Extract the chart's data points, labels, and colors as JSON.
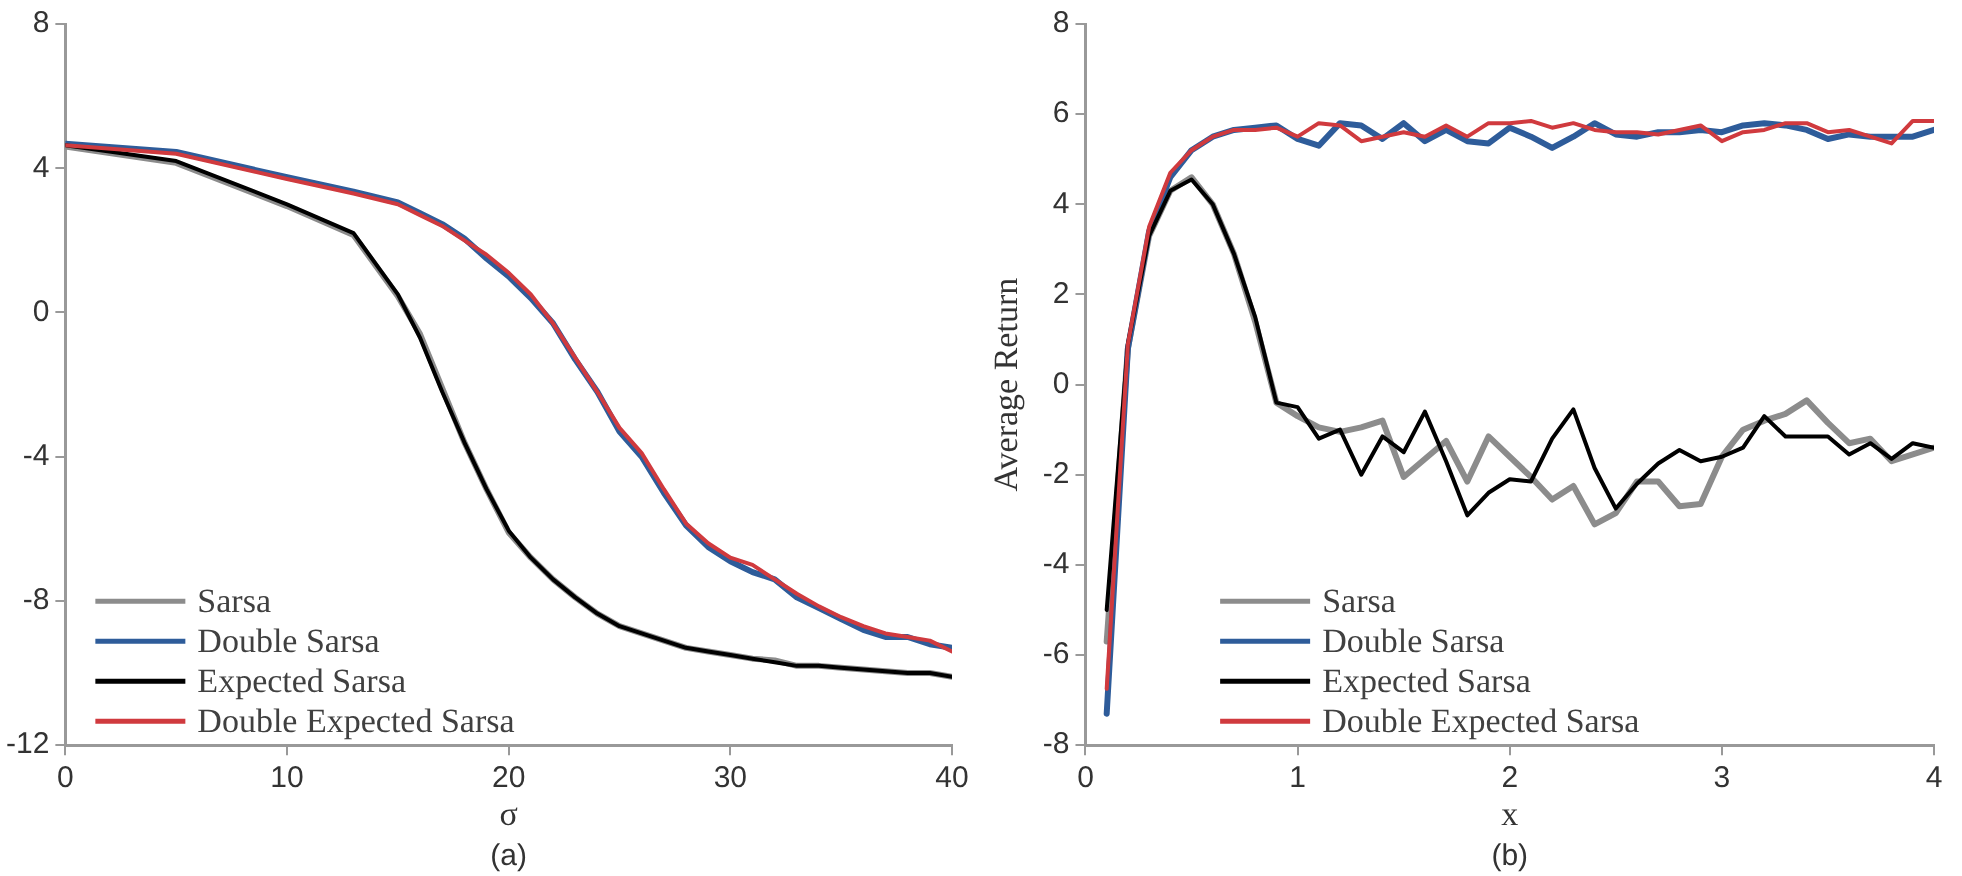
{
  "chart_data": [
    {
      "type": "line",
      "xlabel": "σ",
      "annotations": [
        "(a)"
      ],
      "xlim": [
        0,
        40
      ],
      "xticks": [
        0,
        10,
        20,
        30,
        40
      ],
      "ylim": [
        -12,
        8
      ],
      "yticks": [
        8,
        4,
        0,
        -4,
        -8,
        -12
      ],
      "grid": false,
      "legend": "bottom left",
      "marker": "none",
      "line_style": "solid",
      "x": [
        0,
        5,
        10,
        13,
        15,
        16,
        17,
        18,
        19,
        20,
        21,
        22,
        23,
        24,
        25,
        26,
        27,
        28,
        29,
        30,
        31,
        32,
        33,
        34,
        35,
        36,
        37,
        38,
        39,
        40
      ],
      "series": [
        {
          "name": "Sarsa",
          "color": "#8c8c8c",
          "values": [
            4.6,
            4.15,
            2.95,
            2.15,
            0.45,
            -0.6,
            -2.1,
            -3.6,
            -4.9,
            -6.1,
            -6.8,
            -7.4,
            -7.9,
            -8.35,
            -8.7,
            -8.9,
            -9.1,
            -9.3,
            -9.4,
            -9.5,
            -9.6,
            -9.65,
            -9.8,
            -9.8,
            -9.85,
            -9.9,
            -9.95,
            -10.0,
            -10.0,
            -10.1
          ]
        },
        {
          "name": "Double Sarsa",
          "color": "#2e5c9a",
          "values": [
            4.68,
            4.45,
            3.75,
            3.35,
            3.05,
            2.75,
            2.45,
            2.05,
            1.5,
            1.0,
            0.4,
            -0.3,
            -1.3,
            -2.2,
            -3.3,
            -4.0,
            -5.0,
            -5.9,
            -6.5,
            -6.9,
            -7.2,
            -7.4,
            -7.9,
            -8.2,
            -8.5,
            -8.8,
            -9.0,
            -9.0,
            -9.2,
            -9.3
          ]
        },
        {
          "name": "Expected Sarsa",
          "color": "#000000",
          "values": [
            4.64,
            4.2,
            3.0,
            2.2,
            0.5,
            -0.7,
            -2.2,
            -3.6,
            -4.9,
            -6.05,
            -6.8,
            -7.4,
            -7.9,
            -8.35,
            -8.7,
            -8.9,
            -9.1,
            -9.3,
            -9.4,
            -9.5,
            -9.6,
            -9.7,
            -9.8,
            -9.8,
            -9.85,
            -9.9,
            -9.95,
            -10.0,
            -10.0,
            -10.1
          ]
        },
        {
          "name": "Double Expected Sarsa",
          "color": "#d03a3e",
          "values": [
            4.64,
            4.4,
            3.7,
            3.3,
            3.0,
            2.7,
            2.4,
            2.0,
            1.6,
            1.1,
            0.5,
            -0.3,
            -1.25,
            -2.2,
            -3.2,
            -3.9,
            -4.9,
            -5.85,
            -6.4,
            -6.8,
            -7.0,
            -7.4,
            -7.8,
            -8.15,
            -8.45,
            -8.7,
            -8.9,
            -9.0,
            -9.1,
            -9.4
          ]
        }
      ]
    },
    {
      "type": "line",
      "xlabel": "x",
      "ylabel": "Average Return",
      "annotations": [
        "(b)"
      ],
      "xlim": [
        0,
        4
      ],
      "xticks": [
        0,
        1,
        2,
        3,
        4
      ],
      "ylim": [
        -8,
        8
      ],
      "yticks": [
        8,
        6,
        4,
        2,
        0,
        -2,
        -4,
        -6,
        -8
      ],
      "grid": false,
      "legend": "bottom",
      "marker": "none",
      "line_style": "solid",
      "x": [
        0.1,
        0.2,
        0.3,
        0.4,
        0.5,
        0.6,
        0.7,
        0.8,
        0.9,
        1.0,
        1.1,
        1.2,
        1.3,
        1.4,
        1.5,
        1.6,
        1.7,
        1.8,
        1.9,
        2.0,
        2.1,
        2.2,
        2.3,
        2.4,
        2.5,
        2.6,
        2.7,
        2.8,
        2.9,
        3.0,
        3.1,
        3.2,
        3.3,
        3.4,
        3.5,
        3.6,
        3.7,
        3.8,
        3.9,
        4.0
      ],
      "series": [
        {
          "name": "Sarsa",
          "color": "#8c8c8c",
          "values": [
            -5.7,
            0.8,
            3.3,
            4.3,
            4.6,
            4.0,
            2.9,
            1.4,
            -0.4,
            -0.7,
            -0.95,
            -1.05,
            -0.95,
            -0.8,
            -2.05,
            -1.65,
            -1.25,
            -2.15,
            -1.15,
            -1.6,
            -2.05,
            -2.55,
            -2.25,
            -3.1,
            -2.85,
            -2.15,
            -2.15,
            -2.7,
            -2.65,
            -1.6,
            -1.0,
            -0.8,
            -0.65,
            -0.35,
            -0.85,
            -1.3,
            -1.2,
            -1.7,
            -1.55,
            -1.4
          ]
        },
        {
          "name": "Double Sarsa",
          "color": "#2e5c9a",
          "values": [
            -7.3,
            0.8,
            3.4,
            4.6,
            5.2,
            5.5,
            5.65,
            5.7,
            5.75,
            5.45,
            5.3,
            5.8,
            5.75,
            5.45,
            5.8,
            5.4,
            5.65,
            5.4,
            5.35,
            5.7,
            5.5,
            5.25,
            5.5,
            5.8,
            5.55,
            5.5,
            5.6,
            5.6,
            5.65,
            5.6,
            5.75,
            5.8,
            5.75,
            5.65,
            5.45,
            5.55,
            5.5,
            5.5,
            5.5,
            5.65
          ]
        },
        {
          "name": "Expected Sarsa",
          "color": "#000000",
          "values": [
            -5.0,
            0.9,
            3.3,
            4.3,
            4.55,
            4.0,
            2.9,
            1.5,
            -0.4,
            -0.5,
            -1.2,
            -1.0,
            -2.0,
            -1.15,
            -1.5,
            -0.6,
            -1.7,
            -2.9,
            -2.4,
            -2.1,
            -2.15,
            -1.2,
            -0.55,
            -1.85,
            -2.75,
            -2.2,
            -1.75,
            -1.45,
            -1.7,
            -1.6,
            -1.4,
            -0.7,
            -1.15,
            -1.15,
            -1.15,
            -1.55,
            -1.3,
            -1.65,
            -1.3,
            -1.4
          ]
        },
        {
          "name": "Double Expected Sarsa",
          "color": "#d03a3e",
          "values": [
            -6.75,
            0.9,
            3.5,
            4.7,
            5.2,
            5.5,
            5.65,
            5.65,
            5.7,
            5.5,
            5.8,
            5.75,
            5.4,
            5.5,
            5.6,
            5.5,
            5.75,
            5.5,
            5.8,
            5.8,
            5.85,
            5.7,
            5.8,
            5.65,
            5.6,
            5.6,
            5.55,
            5.65,
            5.75,
            5.4,
            5.6,
            5.65,
            5.8,
            5.8,
            5.6,
            5.65,
            5.5,
            5.35,
            5.85,
            5.85
          ]
        }
      ]
    }
  ]
}
